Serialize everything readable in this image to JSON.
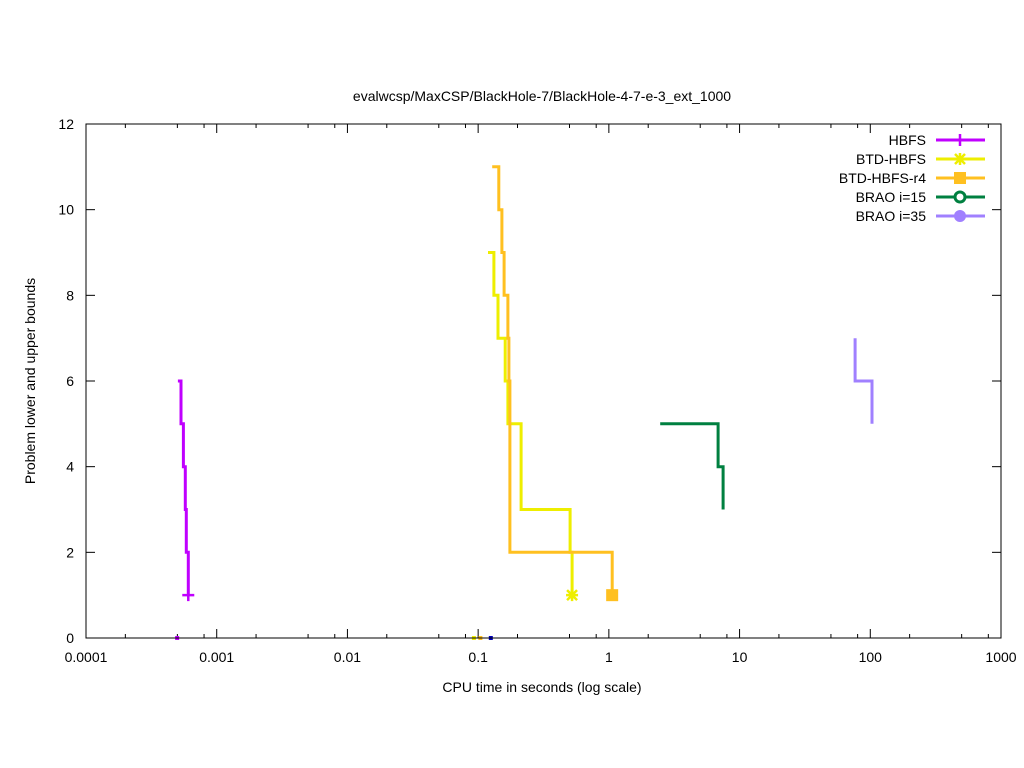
{
  "chart_data": {
    "type": "line",
    "title": "evalwcsp/MaxCSP/BlackHole-7/BlackHole-4-7-e-3_ext_1000",
    "xlabel": "CPU time in seconds (log scale)",
    "ylabel": "Problem lower and upper bounds",
    "xscale": "log",
    "xlim": [
      0.0001,
      1000
    ],
    "ylim": [
      0,
      12
    ],
    "x_ticks": [
      {
        "value": 0.0001,
        "label": "0.0001"
      },
      {
        "value": 0.001,
        "label": "0.001"
      },
      {
        "value": 0.01,
        "label": "0.01"
      },
      {
        "value": 0.1,
        "label": "0.1"
      },
      {
        "value": 1,
        "label": "1"
      },
      {
        "value": 10,
        "label": "10"
      },
      {
        "value": 100,
        "label": "100"
      },
      {
        "value": 1000,
        "label": "1000"
      }
    ],
    "y_ticks": [
      {
        "value": 0,
        "label": "0"
      },
      {
        "value": 2,
        "label": "2"
      },
      {
        "value": 4,
        "label": "4"
      },
      {
        "value": 6,
        "label": "6"
      },
      {
        "value": 8,
        "label": "8"
      },
      {
        "value": 10,
        "label": "10"
      },
      {
        "value": 12,
        "label": "12"
      }
    ],
    "grid": false,
    "legend_position": "top-right",
    "series": [
      {
        "name": "HBFS",
        "color": "#c000ff",
        "marker": "plus",
        "points": [
          [
            0.000505,
            6
          ],
          [
            0.000533,
            6
          ],
          [
            0.000533,
            5
          ],
          [
            0.000556,
            5
          ],
          [
            0.000556,
            4
          ],
          [
            0.000575,
            4
          ],
          [
            0.000575,
            3
          ],
          [
            0.000585,
            3
          ],
          [
            0.000585,
            2
          ],
          [
            0.000606,
            2
          ],
          [
            0.000606,
            1
          ]
        ],
        "end_marker": [
          0.000606,
          1
        ],
        "lower_bound": [
          0.000498,
          0
        ]
      },
      {
        "name": "BTD-HBFS",
        "color": "#eeee00",
        "marker": "star",
        "points": [
          [
            0.119,
            9
          ],
          [
            0.132,
            9
          ],
          [
            0.132,
            8
          ],
          [
            0.142,
            8
          ],
          [
            0.142,
            7
          ],
          [
            0.161,
            7
          ],
          [
            0.161,
            6
          ],
          [
            0.169,
            6
          ],
          [
            0.169,
            5
          ],
          [
            0.213,
            5
          ],
          [
            0.213,
            3
          ],
          [
            0.505,
            3
          ],
          [
            0.505,
            2
          ],
          [
            0.523,
            2
          ],
          [
            0.523,
            1
          ]
        ],
        "end_marker": [
          0.523,
          1
        ],
        "lower_bound": [
          0.0928,
          0
        ]
      },
      {
        "name": "BTD-HBFS-r4",
        "color": "#ffc020",
        "marker": "square",
        "points": [
          [
            0.128,
            11
          ],
          [
            0.144,
            11
          ],
          [
            0.144,
            10
          ],
          [
            0.152,
            10
          ],
          [
            0.152,
            9
          ],
          [
            0.158,
            9
          ],
          [
            0.158,
            8
          ],
          [
            0.169,
            8
          ],
          [
            0.169,
            7
          ],
          [
            0.172,
            7
          ],
          [
            0.172,
            6
          ],
          [
            0.175,
            6
          ],
          [
            0.175,
            2
          ],
          [
            1.06,
            2
          ],
          [
            1.06,
            1
          ]
        ],
        "end_marker": [
          1.06,
          1
        ],
        "lower_bound": [
          0.104,
          0
        ]
      },
      {
        "name": "BRAO i=15",
        "color": "#008040",
        "marker": "circle-open",
        "points": [
          [
            2.47,
            5
          ],
          [
            6.85,
            5
          ],
          [
            6.85,
            4
          ],
          [
            7.48,
            4
          ],
          [
            7.48,
            3
          ]
        ]
      },
      {
        "name": "BRAO i=35",
        "color": "#a080ff",
        "marker": "circle",
        "points": [
          [
            76.5,
            7
          ],
          [
            76.5,
            6
          ],
          [
            103,
            6
          ],
          [
            103,
            5
          ]
        ]
      }
    ],
    "extra_lower_bound": {
      "color": "#0000c0",
      "point": [
        0.125,
        0
      ]
    }
  }
}
